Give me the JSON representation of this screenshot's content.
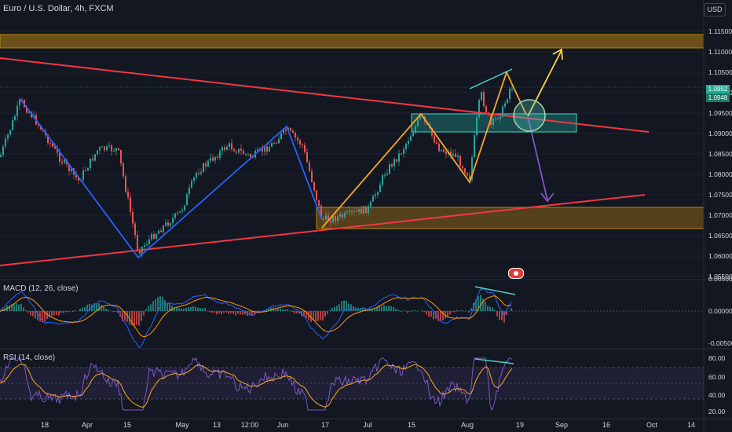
{
  "chart_title": "Euro / U.S. Dollar, 4h, FXCM",
  "currency_label": "USD",
  "price_tag_values": [
    "1.0952",
    "1.0948"
  ],
  "colors": {
    "background": "#131722",
    "up_candle": "#26a69a",
    "down_candle": "#ef5350",
    "trendline": "#f23645",
    "zigzag_blue": "#2962ff",
    "zigzag_orange": "#f7a825",
    "projection_yellow": "#ffd54f",
    "projection_purple": "#7e57c2",
    "zone_orange": "#8a6416",
    "zone_teal": "#1b6b6b",
    "divergence_line": "#4dd0c4",
    "macd_line": "#2962ff",
    "signal_line": "#ff9800",
    "rsi_line": "#7e57c2",
    "rsi_ma": "#f7a825"
  },
  "main_axis": {
    "ticks": [
      "1.11500",
      "1.11000",
      "1.10500",
      "1.10000",
      "1.09500",
      "1.09000",
      "1.08500",
      "1.08000",
      "1.07500",
      "1.07000",
      "1.06500",
      "1.06000",
      "1.05500"
    ]
  },
  "macd": {
    "label": "MACD (12, 26, close)",
    "ticks": [
      "0.00500",
      "0.00000",
      "-0.00500"
    ]
  },
  "rsi": {
    "label": "RSI (14, close)",
    "ticks": [
      "80.00",
      "60.00",
      "40.00",
      "20.00"
    ]
  },
  "time_axis": {
    "labels": [
      "18",
      "Apr",
      "15",
      "May",
      "13",
      "12:00",
      "Jun",
      "17",
      "Jul",
      "15",
      "Aug",
      "19",
      "Sep",
      "16",
      "Oct",
      "14"
    ]
  },
  "icons": [
    "event-flag-icon"
  ]
}
